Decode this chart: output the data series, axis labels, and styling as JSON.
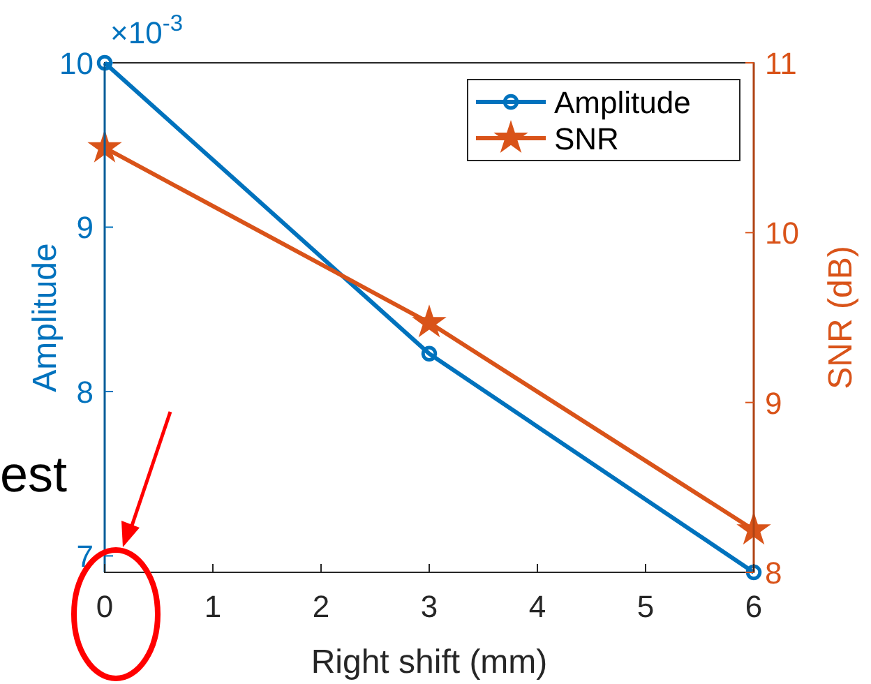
{
  "chart_data": {
    "type": "line",
    "xlabel": "Right shift (mm)",
    "ylabel": "Amplitude",
    "y2label": "SNR (dB)",
    "x": [
      0,
      3,
      6
    ],
    "series": [
      {
        "name": "Amplitude",
        "color": "#0072bd",
        "values": [
          10,
          8.23,
          6.9
        ],
        "marker": "circle"
      },
      {
        "name": "SNR",
        "color": "#d95319",
        "values": [
          10.5,
          9.47,
          8.25
        ],
        "marker": "star",
        "axis": "y2"
      }
    ],
    "xlim": [
      0,
      6
    ],
    "xticks": [
      0,
      1,
      2,
      3,
      4,
      5,
      6
    ],
    "ylim": [
      6.9,
      10
    ],
    "yticks": [
      7,
      8,
      9,
      10
    ],
    "y2lim": [
      8,
      11
    ],
    "y2ticks": [
      8,
      9,
      10,
      11
    ],
    "legend": "top right",
    "grid": false,
    "annotations": [
      "×10$^{-3}$",
      "est"
    ]
  }
}
